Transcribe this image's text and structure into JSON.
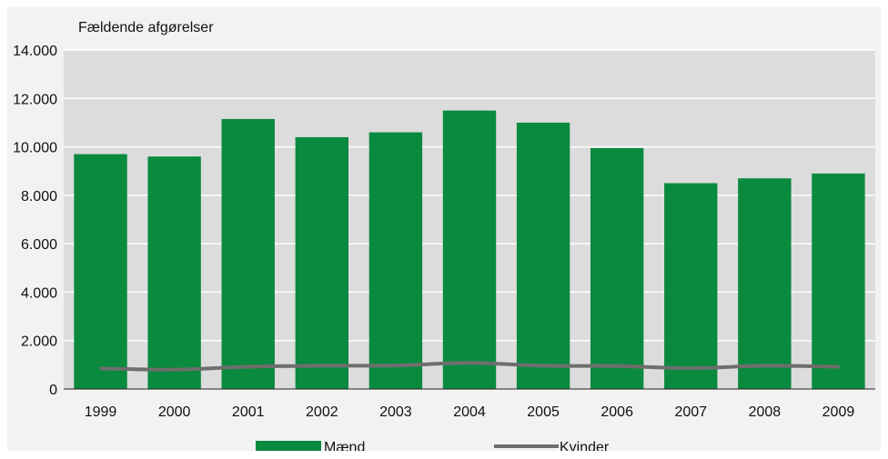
{
  "chart_data": {
    "type": "bar",
    "ylabel": "Fældende afgørelser",
    "categories": [
      "1999",
      "2000",
      "2001",
      "2002",
      "2003",
      "2004",
      "2005",
      "2006",
      "2007",
      "2008",
      "2009"
    ],
    "series": [
      {
        "name": "Mænd",
        "type": "bar",
        "color": "#0a8a3e",
        "values": [
          9700,
          9600,
          11150,
          10400,
          10600,
          11500,
          11000,
          9950,
          8500,
          8700,
          8900
        ]
      },
      {
        "name": "Kvinder",
        "type": "line",
        "color": "#6e6e6e",
        "values": [
          850,
          800,
          920,
          960,
          970,
          1080,
          960,
          950,
          860,
          960,
          920
        ]
      }
    ],
    "ylim": [
      0,
      14000
    ],
    "yticks": [
      0,
      2000,
      4000,
      6000,
      8000,
      10000,
      12000,
      14000
    ],
    "ytick_labels": [
      "0",
      "2.000",
      "4.000",
      "6.000",
      "8.000",
      "10.000",
      "12.000",
      "14.000"
    ],
    "grid": true,
    "legend_position": "bottom"
  }
}
